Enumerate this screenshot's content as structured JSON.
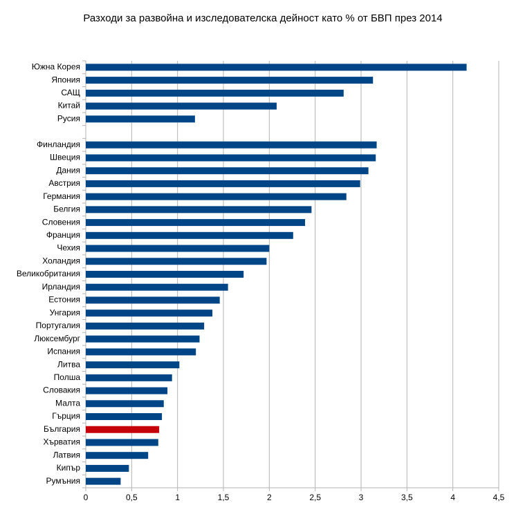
{
  "chart_data": {
    "type": "hbar",
    "title": "Разходи за развойна и изследователска дейност като % от БВП през 2014",
    "categories": [
      "Южна Корея",
      "Япония",
      "САЩ",
      "Китай",
      "Русия",
      null,
      "Финландия",
      "Швеция",
      "Дания",
      "Австрия",
      "Германия",
      "Белгия",
      "Словения",
      "Франция",
      "Чехия",
      "Холандия",
      "Великобритания",
      "Ирландия",
      "Естония",
      "Унгария",
      "Португалия",
      "Люксембург",
      "Испания",
      "Литва",
      "Полша",
      "Словакия",
      "Малта",
      "Гърция",
      "България",
      "Хърватия",
      "Латвия",
      "Кипър",
      "Румъния"
    ],
    "values": [
      4.15,
      3.13,
      2.81,
      2.08,
      1.19,
      null,
      3.17,
      3.16,
      3.08,
      2.99,
      2.84,
      2.46,
      2.39,
      2.26,
      2.0,
      1.97,
      1.72,
      1.55,
      1.46,
      1.38,
      1.29,
      1.24,
      1.2,
      1.02,
      0.94,
      0.89,
      0.85,
      0.83,
      0.8,
      0.79,
      0.68,
      0.47,
      0.38
    ],
    "colors": [
      "#004586",
      "#004586",
      "#004586",
      "#004586",
      "#004586",
      null,
      "#004586",
      "#004586",
      "#004586",
      "#004586",
      "#004586",
      "#004586",
      "#004586",
      "#004586",
      "#004586",
      "#004586",
      "#004586",
      "#004586",
      "#004586",
      "#004586",
      "#004586",
      "#004586",
      "#004586",
      "#004586",
      "#004586",
      "#004586",
      "#004586",
      "#004586",
      "#c5000b",
      "#004586",
      "#004586",
      "#004586",
      "#004586"
    ],
    "xlim": [
      0,
      4.5
    ],
    "xticks": [
      0,
      {
        "value": 0.5,
        "label": "0,5"
      },
      1,
      {
        "value": 1.5,
        "label": "1,5"
      },
      2,
      {
        "value": 2.5,
        "label": "2,5"
      },
      3,
      {
        "value": 3.5,
        "label": "3,5"
      },
      4,
      {
        "value": 4.5,
        "label": "4,5"
      }
    ],
    "grid": true
  }
}
